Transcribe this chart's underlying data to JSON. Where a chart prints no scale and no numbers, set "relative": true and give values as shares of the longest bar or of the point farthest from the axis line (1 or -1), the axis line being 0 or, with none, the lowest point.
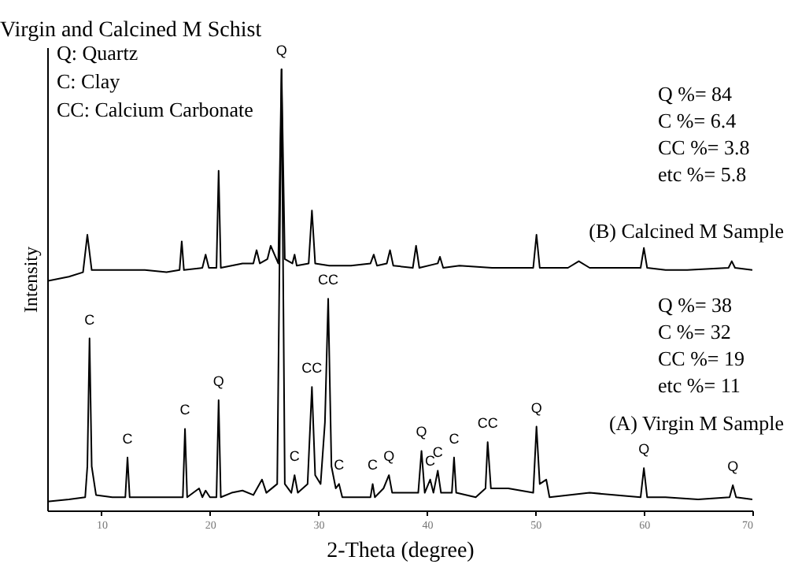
{
  "chart_data": {
    "type": "line",
    "title": "Virgin and Calcined M Schist",
    "xlabel": "2-Theta (degree)",
    "ylabel": "Intensity",
    "relative": true,
    "xlim": [
      5,
      70
    ],
    "xticks": [
      10,
      20,
      30,
      40,
      50,
      60,
      70
    ],
    "tick_labels": "x",
    "grid": false,
    "marker": "none",
    "line_style": "solid",
    "series": [
      {
        "name": "(B) Calcined M Sample",
        "color": "#000000",
        "x": [
          5,
          7,
          8.3,
          8.7,
          9.1,
          11,
          14,
          16,
          17.2,
          17.4,
          17.6,
          19.3,
          19.6,
          19.9,
          20.6,
          20.8,
          21,
          22,
          23,
          24,
          24.3,
          24.6,
          25.3,
          25.6,
          26.3,
          26.6,
          26.9,
          27.6,
          27.8,
          28,
          29.1,
          29.4,
          29.7,
          31,
          33,
          34.8,
          35.1,
          35.4,
          36.3,
          36.6,
          36.9,
          38.7,
          39,
          39.3,
          41,
          41.2,
          41.5,
          43,
          46,
          49.8,
          50.1,
          50.4,
          53,
          54,
          55,
          59.7,
          60,
          60.3,
          62,
          64,
          67.8,
          68.1,
          68.4,
          70
        ],
        "values": [
          0.52,
          0.53,
          0.54,
          0.625,
          0.545,
          0.545,
          0.545,
          0.54,
          0.545,
          0.61,
          0.545,
          0.55,
          0.58,
          0.55,
          0.55,
          0.77,
          0.55,
          0.555,
          0.56,
          0.56,
          0.59,
          0.56,
          0.57,
          0.6,
          0.56,
          1,
          0.57,
          0.56,
          0.58,
          0.555,
          0.56,
          0.68,
          0.56,
          0.555,
          0.555,
          0.56,
          0.58,
          0.555,
          0.56,
          0.59,
          0.555,
          0.55,
          0.6,
          0.55,
          0.56,
          0.575,
          0.55,
          0.555,
          0.55,
          0.55,
          0.625,
          0.55,
          0.55,
          0.565,
          0.55,
          0.55,
          0.595,
          0.55,
          0.545,
          0.545,
          0.55,
          0.565,
          0.55,
          0.545
        ]
      },
      {
        "name": "(A) Virgin M Sample",
        "color": "#000000",
        "x": [
          5,
          7,
          8.5,
          8.7,
          8.9,
          9.1,
          9.5,
          11,
          12.2,
          12.4,
          12.6,
          14,
          16,
          17.5,
          17.7,
          17.9,
          19,
          19.3,
          19.6,
          20,
          20.6,
          20.8,
          21,
          22,
          23,
          24,
          24.8,
          25.2,
          26.2,
          26.6,
          26.9,
          27.5,
          27.8,
          28.1,
          29,
          29.4,
          29.7,
          30.2,
          30.6,
          30.9,
          31.2,
          31.6,
          31.9,
          32.2,
          34,
          34.8,
          35,
          35.2,
          36,
          36.5,
          36.8,
          39.2,
          39.5,
          39.8,
          40.3,
          40.6,
          41,
          41.3,
          42.3,
          42.5,
          42.7,
          44.5,
          45.4,
          45.6,
          45.9,
          47.5,
          49.8,
          50.1,
          50.4,
          51,
          51.3,
          55,
          59.7,
          60,
          60.3,
          62,
          65,
          67.9,
          68.2,
          68.5,
          70
        ],
        "values": [
          0.02,
          0.025,
          0.03,
          0.1,
          0.39,
          0.1,
          0.035,
          0.03,
          0.03,
          0.12,
          0.03,
          0.03,
          0.03,
          0.03,
          0.185,
          0.03,
          0.05,
          0.03,
          0.045,
          0.03,
          0.03,
          0.25,
          0.03,
          0.04,
          0.045,
          0.035,
          0.07,
          0.04,
          0.06,
          1,
          0.06,
          0.04,
          0.08,
          0.04,
          0.06,
          0.28,
          0.08,
          0.06,
          0.2,
          0.48,
          0.1,
          0.05,
          0.06,
          0.03,
          0.03,
          0.03,
          0.06,
          0.03,
          0.05,
          0.08,
          0.04,
          0.04,
          0.135,
          0.04,
          0.07,
          0.04,
          0.09,
          0.04,
          0.04,
          0.12,
          0.04,
          0.03,
          0.05,
          0.155,
          0.05,
          0.05,
          0.04,
          0.19,
          0.06,
          0.07,
          0.03,
          0.04,
          0.03,
          0.096,
          0.03,
          0.03,
          0.025,
          0.03,
          0.057,
          0.03,
          0.025
        ]
      }
    ],
    "annotations": [
      "Q:   Quartz\nC:   Clay\nCC: Calcium Carbonate",
      "Q  %=  84\nC   %=  6.4\nCC %= 3.8\netc %=  5.8",
      "Q  %=  38\nC   %=  32\nCC %= 19\netc %=  11",
      {
        "text": "Q",
        "x": 26.6,
        "y": 1
      },
      {
        "text": "C",
        "x": 8.9,
        "y": 0.39
      },
      {
        "text": "C",
        "x": 12.4,
        "y": 0.12
      },
      {
        "text": "C",
        "x": 17.7,
        "y": 0.185
      },
      {
        "text": "Q",
        "x": 20.8,
        "y": 0.25
      },
      {
        "text": "C",
        "x": 27.8,
        "y": 0.08
      },
      {
        "text": "CC",
        "x": 29.4,
        "y": 0.28
      },
      {
        "text": "CC",
        "x": 30.9,
        "y": 0.48
      },
      {
        "text": "C",
        "x": 31.9,
        "y": 0.06
      },
      {
        "text": "C",
        "x": 35,
        "y": 0.06
      },
      {
        "text": "Q",
        "x": 36.5,
        "y": 0.08
      },
      {
        "text": "Q",
        "x": 39.5,
        "y": 0.135
      },
      {
        "text": "C",
        "x": 40.3,
        "y": 0.07
      },
      {
        "text": "C",
        "x": 41,
        "y": 0.09
      },
      {
        "text": "C",
        "x": 42.5,
        "y": 0.12
      },
      {
        "text": "CC",
        "x": 45.6,
        "y": 0.155
      },
      {
        "text": "Q",
        "x": 50.1,
        "y": 0.19
      },
      {
        "text": "Q",
        "x": 60,
        "y": 0.096
      },
      {
        "text": "Q",
        "x": 68.2,
        "y": 0.057
      }
    ]
  }
}
